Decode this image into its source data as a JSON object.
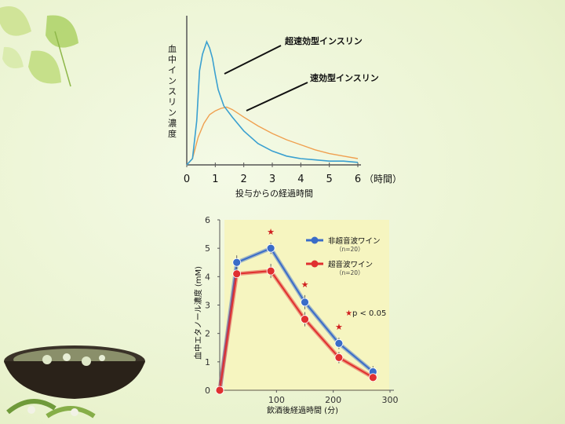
{
  "chart_data": [
    {
      "type": "line",
      "title": "",
      "ylabel": "血中インスリン濃度",
      "xlabel": "投与からの経過時間",
      "x_unit": "（時間）",
      "xlim": [
        0,
        6
      ],
      "x_ticks": [
        "0",
        "1",
        "2",
        "3",
        "4",
        "5",
        "6"
      ],
      "series": [
        {
          "name": "超速効型インスリン",
          "color": "#3aa0d0",
          "x": [
            0,
            0.2,
            0.35,
            0.45,
            0.55,
            0.7,
            0.8,
            0.9,
            1.0,
            1.1,
            1.3,
            1.6,
            2.0,
            2.5,
            3.0,
            3.5,
            4.0,
            4.5,
            5.0,
            5.5,
            6.0
          ],
          "y": [
            0,
            0.05,
            0.35,
            0.75,
            0.88,
            0.98,
            0.93,
            0.85,
            0.72,
            0.6,
            0.47,
            0.38,
            0.27,
            0.17,
            0.11,
            0.07,
            0.05,
            0.04,
            0.03,
            0.03,
            0.02
          ]
        },
        {
          "name": "速効型インスリン",
          "color": "#f0a050",
          "x": [
            0,
            0.2,
            0.4,
            0.6,
            0.8,
            1.0,
            1.2,
            1.4,
            1.6,
            2.0,
            2.5,
            3.0,
            3.5,
            4.0,
            4.5,
            5.0,
            5.5,
            6.0
          ],
          "y": [
            0,
            0.05,
            0.22,
            0.33,
            0.4,
            0.43,
            0.45,
            0.46,
            0.44,
            0.38,
            0.31,
            0.25,
            0.2,
            0.16,
            0.12,
            0.09,
            0.07,
            0.05
          ]
        }
      ]
    },
    {
      "type": "line",
      "title": "",
      "ylabel": "血中エタノール濃度 (mM)",
      "xlabel": "飲酒後経過時間 (分)",
      "xlim": [
        0,
        300
      ],
      "ylim": [
        0,
        6
      ],
      "x_ticks": [
        "100",
        "200",
        "300"
      ],
      "y_ticks": [
        "0",
        "1",
        "2",
        "3",
        "4",
        "5",
        "6"
      ],
      "x": [
        0,
        30,
        90,
        150,
        210,
        270
      ],
      "series": [
        {
          "name": "非超音波ワイン",
          "n_label": "（n=20）",
          "color": "#3a6cc8",
          "y": [
            0,
            4.5,
            5.0,
            3.1,
            1.65,
            0.65
          ],
          "err": [
            0,
            0.25,
            0.2,
            0.25,
            0.2,
            0.2
          ]
        },
        {
          "name": "超音波ワイン",
          "n_label": "（n=20）",
          "color": "#e03030",
          "y": [
            0,
            4.1,
            4.2,
            2.5,
            1.15,
            0.45
          ],
          "err": [
            0,
            0.15,
            0.25,
            0.25,
            0.2,
            0.15
          ]
        }
      ],
      "significance": {
        "x": [
          90,
          150,
          210
        ],
        "label": "p < 0.05",
        "color": "#d02020"
      }
    }
  ],
  "chart1": {
    "series_labels": [
      "超速効型インスリン",
      "速効型インスリン"
    ],
    "xlabel": "投与からの経過時間"
  },
  "chart2": {
    "ylabel": "血中エタノール濃度 (mM)",
    "xlabel": "飲酒後経過時間 (分)"
  }
}
